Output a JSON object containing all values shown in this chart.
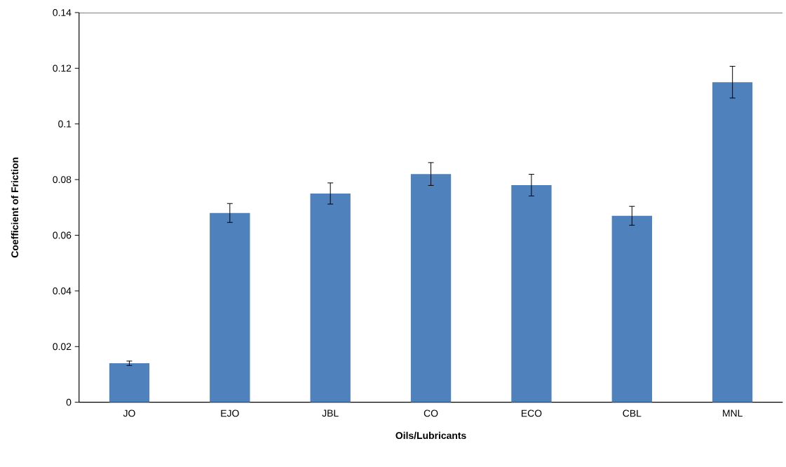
{
  "chart_data": {
    "type": "bar",
    "xlabel": "Oils/Lubricants",
    "ylabel": "Coefficient of Friction",
    "categories": [
      "JO",
      "EJO",
      "JBL",
      "CO",
      "ECO",
      "CBL",
      "MNL"
    ],
    "values": [
      0.014,
      0.068,
      0.075,
      0.082,
      0.078,
      0.067,
      0.115
    ],
    "errors": [
      0.0008,
      0.0034,
      0.0038,
      0.0041,
      0.0039,
      0.0034,
      0.0057
    ],
    "color": "#4f81bd",
    "ylim": [
      0,
      0.14
    ],
    "yticks": [
      {
        "value": 0,
        "label": "0"
      },
      0.02,
      0.04,
      0.06,
      0.08,
      {
        "value": 0.1,
        "label": "0.1"
      },
      0.12,
      0.14
    ],
    "grid": false
  }
}
